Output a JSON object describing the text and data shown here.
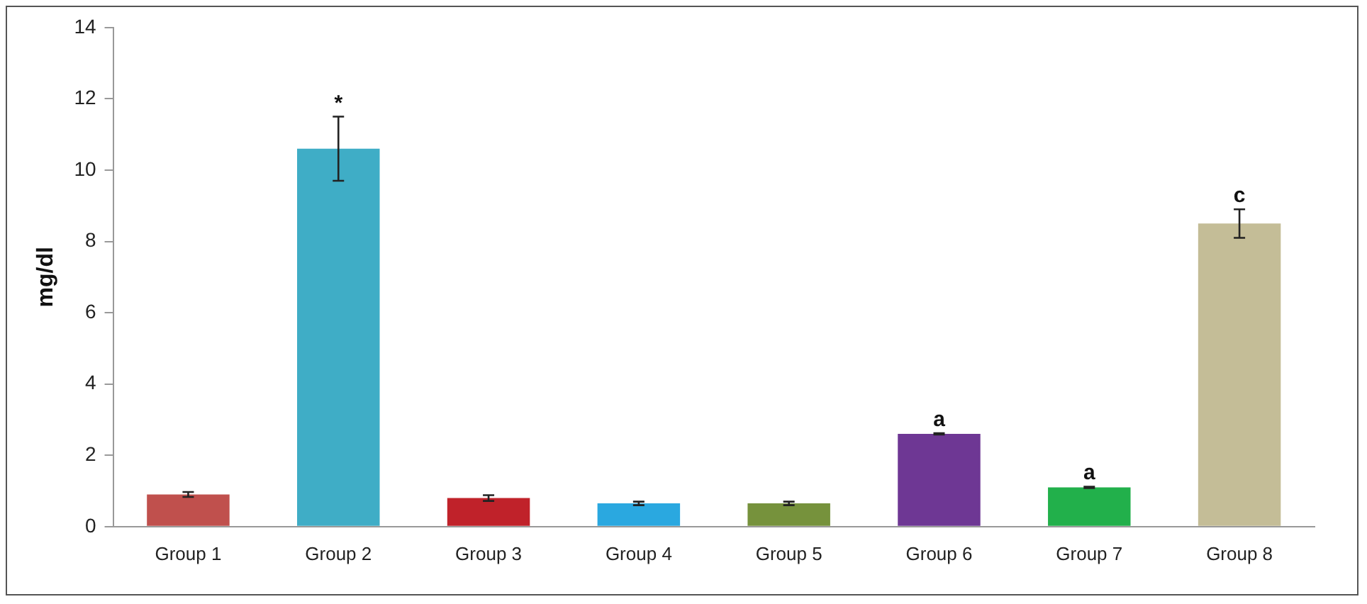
{
  "chart_data": {
    "type": "bar",
    "ylabel": "mg/dl",
    "categories": [
      "Group 1",
      "Group 2",
      "Group 3",
      "Group 4",
      "Group 5",
      "Group 6",
      "Group 7",
      "Group 8"
    ],
    "values": [
      0.9,
      10.6,
      0.8,
      0.65,
      0.65,
      2.6,
      1.1,
      8.5
    ],
    "errors": [
      0.07,
      0.9,
      0.08,
      0.05,
      0.05,
      0.02,
      0.02,
      0.4
    ],
    "colors": [
      "#c0504d",
      "#3fadc6",
      "#c0222a",
      "#2aa8e0",
      "#76923c",
      "#6e3794",
      "#22b04b",
      "#c4bd97"
    ],
    "ylim": [
      0,
      14
    ],
    "yticks": [
      0,
      2,
      4,
      6,
      8,
      10,
      12,
      14
    ],
    "grid": false,
    "legend": false,
    "annotations": [
      {
        "text": "*",
        "x": "Group 2",
        "y": 10.6
      },
      {
        "text": "a",
        "x": "Group 6",
        "y": 2.6
      },
      {
        "text": "a",
        "x": "Group 7",
        "y": 1.1
      },
      {
        "text": "c",
        "x": "Group 8",
        "y": 8.5
      }
    ]
  }
}
